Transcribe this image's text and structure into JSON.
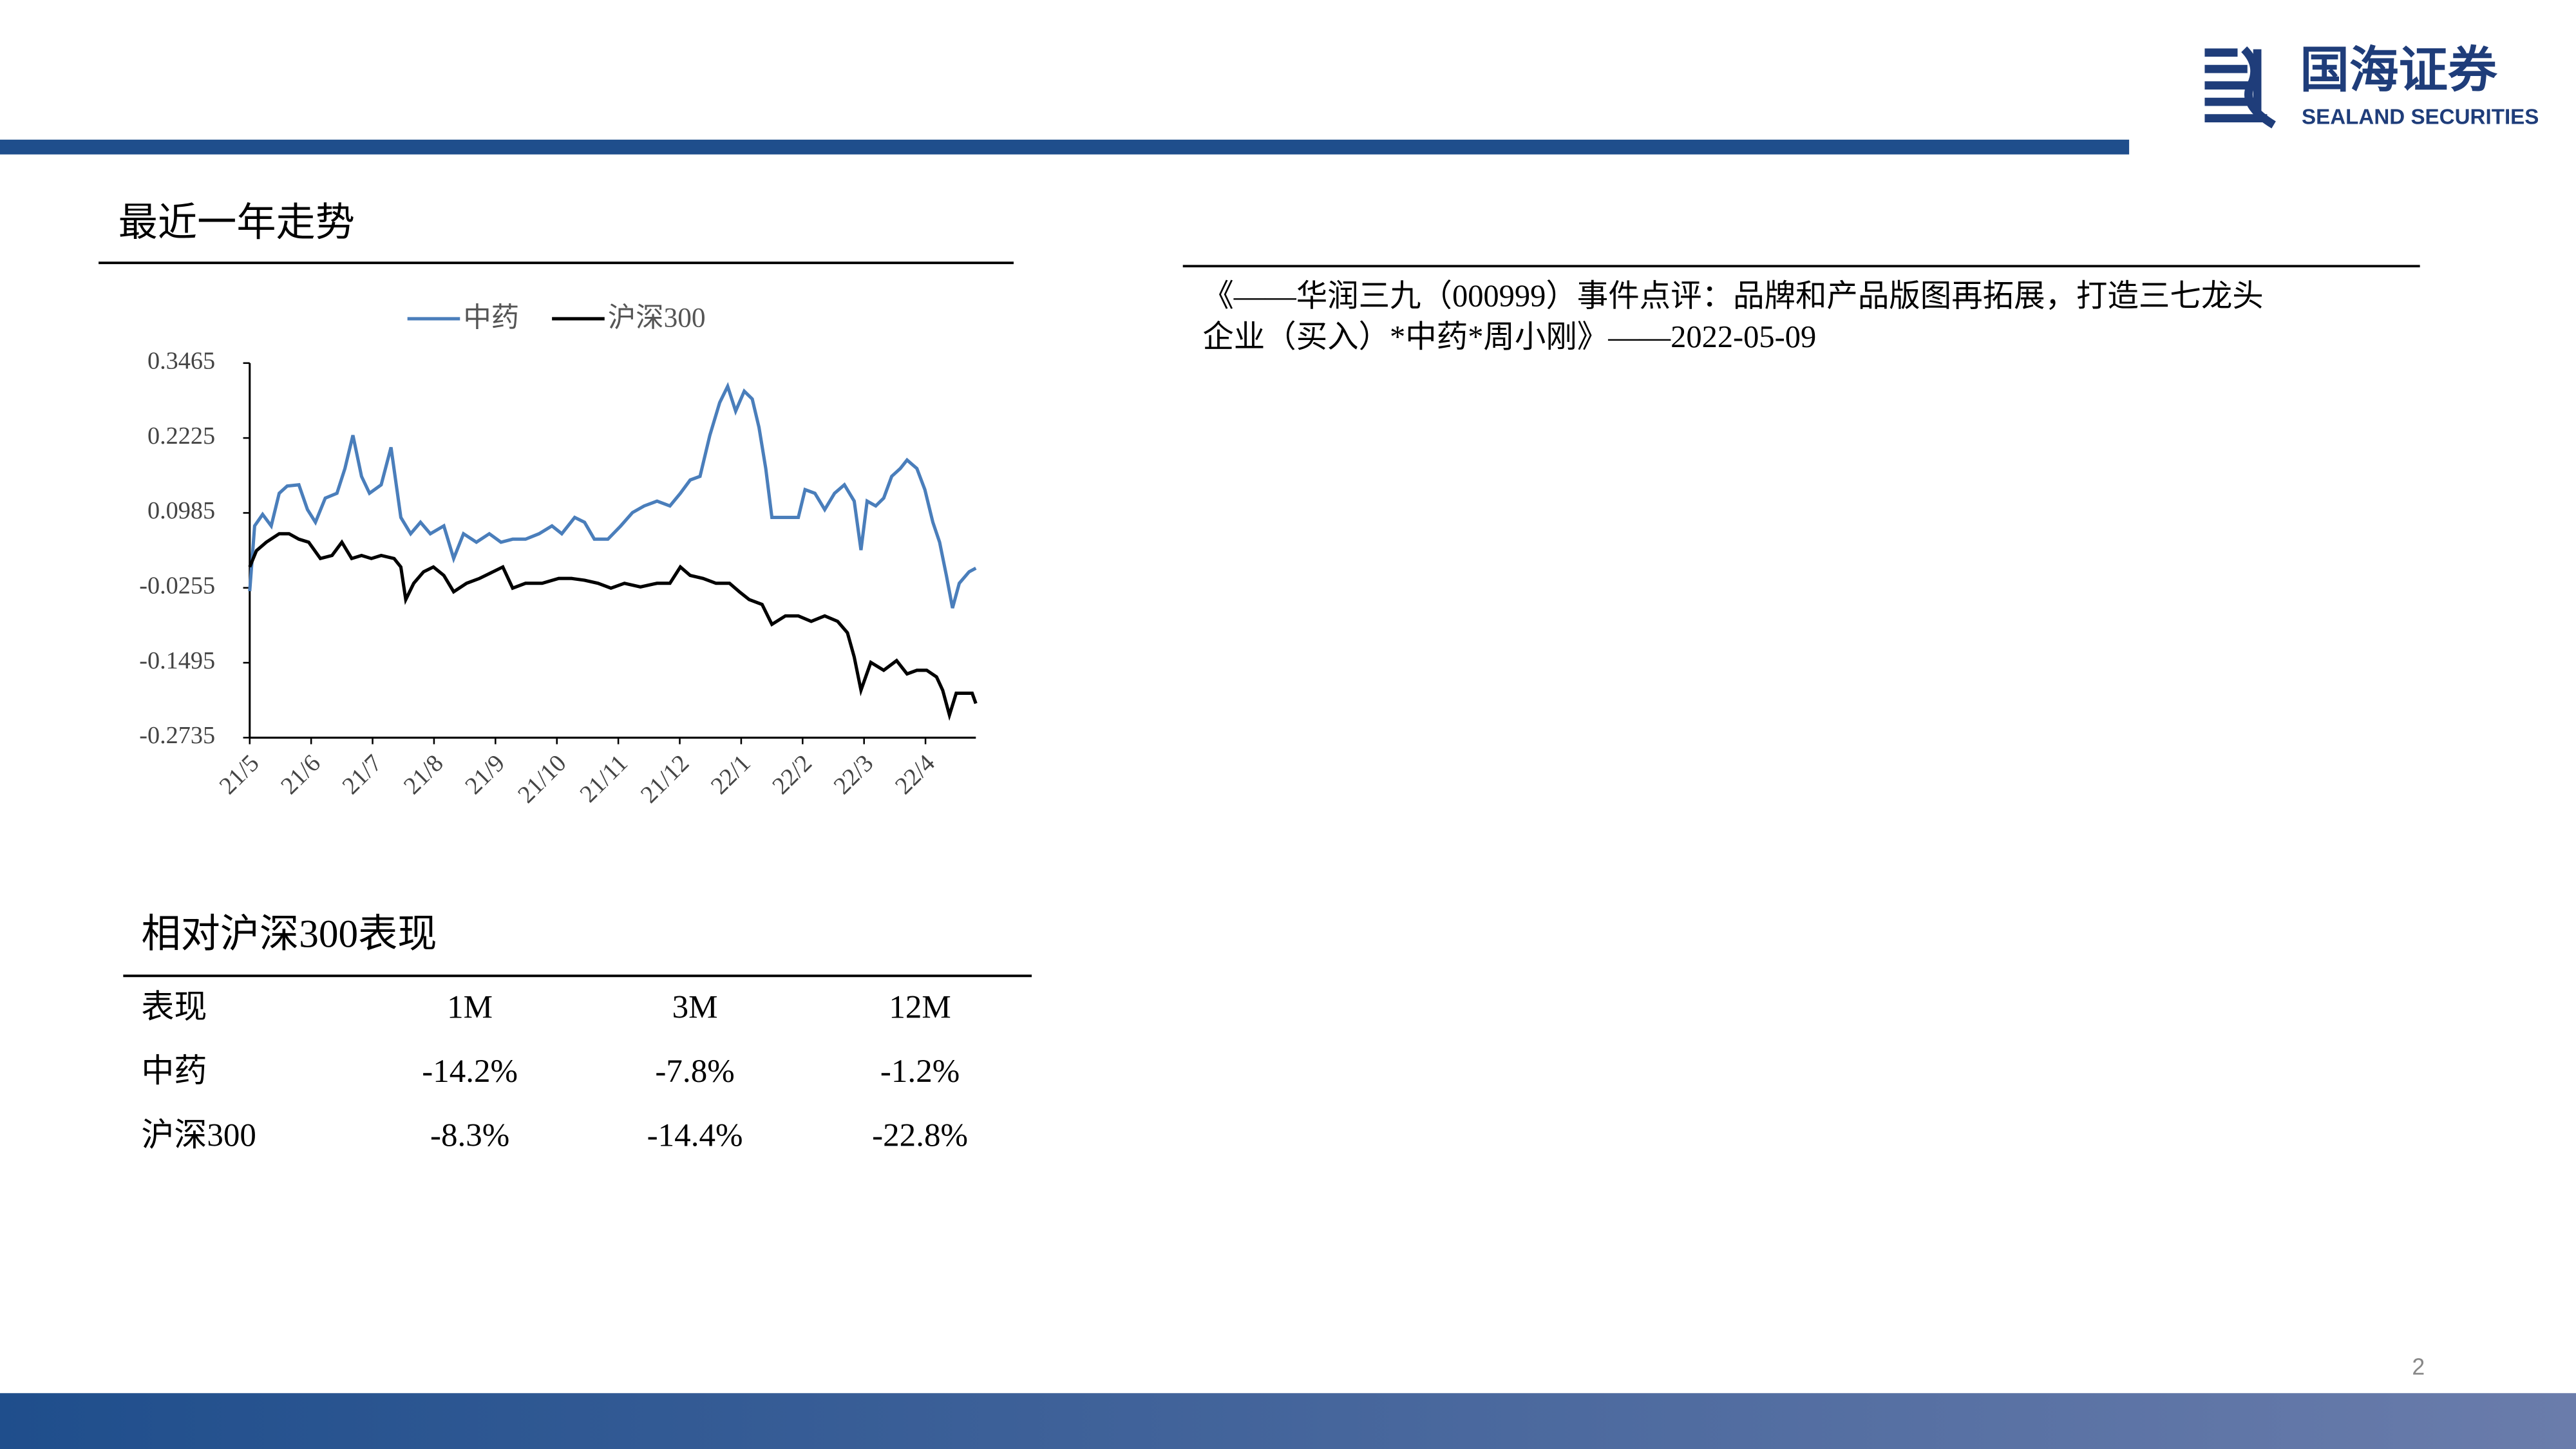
{
  "header": {
    "brand": "国海证券",
    "brand_en": "SEALAND SECURITIES"
  },
  "chart_data": {
    "type": "line",
    "title": "最近一年走势",
    "xlim": [
      0,
      11.82
    ],
    "xticks": [
      {
        "value": 0,
        "label": "21/5"
      },
      {
        "value": 1,
        "label": "21/6"
      },
      {
        "value": 2,
        "label": "21/7"
      },
      {
        "value": 3,
        "label": "21/8"
      },
      {
        "value": 4,
        "label": "21/9"
      },
      {
        "value": 5,
        "label": "21/10"
      },
      {
        "value": 6,
        "label": "21/11"
      },
      {
        "value": 7,
        "label": "21/12"
      },
      {
        "value": 8,
        "label": "22/1"
      },
      {
        "value": 9,
        "label": "22/2"
      },
      {
        "value": 10,
        "label": "22/3"
      },
      {
        "value": 11,
        "label": "22/4"
      }
    ],
    "ylim": [
      -0.2735,
      0.3465
    ],
    "yticks": [
      0.3465,
      0.2225,
      0.0985,
      -0.0255,
      -0.1495,
      -0.2735
    ],
    "legend": "top",
    "series": [
      {
        "name": "中药",
        "color": "#4a7ebb",
        "x": [
          0,
          0.08,
          0.21,
          0.35,
          0.48,
          0.61,
          0.8,
          0.94,
          1.07,
          1.23,
          1.42,
          1.55,
          1.68,
          1.82,
          1.95,
          2.14,
          2.3,
          2.46,
          2.62,
          2.78,
          2.94,
          3.16,
          3.32,
          3.48,
          3.69,
          3.9,
          4.09,
          4.28,
          4.49,
          4.71,
          4.92,
          5.08,
          5.29,
          5.45,
          5.61,
          5.83,
          6.04,
          6.23,
          6.42,
          6.63,
          6.84,
          7.01,
          7.17,
          7.33,
          7.49,
          7.65,
          7.78,
          7.91,
          8.05,
          8.18,
          8.29,
          8.4,
          8.5,
          8.72,
          8.93,
          9.04,
          9.2,
          9.36,
          9.52,
          9.68,
          9.84,
          9.95,
          10.05,
          10.19,
          10.32,
          10.45,
          10.59,
          10.7,
          10.86,
          10.99,
          11.12,
          11.23,
          11.34,
          11.44,
          11.55,
          11.71,
          11.82
        ],
        "values": [
          -0.031,
          0.077,
          0.096,
          0.077,
          0.131,
          0.143,
          0.145,
          0.104,
          0.083,
          0.123,
          0.131,
          0.172,
          0.227,
          0.159,
          0.131,
          0.145,
          0.207,
          0.091,
          0.064,
          0.083,
          0.064,
          0.077,
          0.023,
          0.064,
          0.05,
          0.064,
          0.05,
          0.055,
          0.055,
          0.064,
          0.077,
          0.064,
          0.091,
          0.083,
          0.055,
          0.055,
          0.077,
          0.099,
          0.11,
          0.118,
          0.11,
          0.131,
          0.153,
          0.159,
          0.227,
          0.281,
          0.308,
          0.267,
          0.3,
          0.287,
          0.24,
          0.172,
          0.091,
          0.091,
          0.091,
          0.137,
          0.131,
          0.104,
          0.131,
          0.145,
          0.118,
          0.037,
          0.118,
          0.11,
          0.123,
          0.159,
          0.172,
          0.186,
          0.172,
          0.137,
          0.083,
          0.05,
          -0.005,
          -0.059,
          -0.018,
          0.001,
          0.007
        ]
      },
      {
        "name": "沪深300",
        "color": "#000000",
        "x": [
          0,
          0.11,
          0.27,
          0.48,
          0.64,
          0.8,
          0.96,
          1.15,
          1.34,
          1.5,
          1.66,
          1.82,
          1.98,
          2.14,
          2.35,
          2.46,
          2.54,
          2.67,
          2.83,
          2.99,
          3.16,
          3.32,
          3.53,
          3.74,
          3.96,
          4.12,
          4.28,
          4.49,
          4.76,
          5.03,
          5.24,
          5.45,
          5.67,
          5.88,
          6.1,
          6.36,
          6.63,
          6.84,
          7.01,
          7.17,
          7.38,
          7.59,
          7.81,
          7.97,
          8.13,
          8.34,
          8.5,
          8.72,
          8.93,
          9.14,
          9.36,
          9.57,
          9.73,
          9.84,
          9.95,
          10.11,
          10.32,
          10.53,
          10.7,
          10.86,
          11.02,
          11.18,
          11.28,
          11.39,
          11.5,
          11.66,
          11.76,
          11.82
        ],
        "values": [
          0.009,
          0.036,
          0.05,
          0.064,
          0.064,
          0.055,
          0.05,
          0.023,
          0.028,
          0.05,
          0.023,
          0.028,
          0.023,
          0.028,
          0.023,
          0.009,
          -0.045,
          -0.018,
          0.001,
          0.009,
          -0.005,
          -0.032,
          -0.018,
          -0.01,
          0.001,
          0.009,
          -0.026,
          -0.018,
          -0.018,
          -0.01,
          -0.01,
          -0.013,
          -0.018,
          -0.026,
          -0.018,
          -0.024,
          -0.018,
          -0.018,
          0.009,
          -0.005,
          -0.01,
          -0.018,
          -0.018,
          -0.032,
          -0.045,
          -0.053,
          -0.086,
          -0.072,
          -0.072,
          -0.081,
          -0.072,
          -0.081,
          -0.1,
          -0.14,
          -0.195,
          -0.149,
          -0.162,
          -0.146,
          -0.168,
          -0.162,
          -0.162,
          -0.173,
          -0.195,
          -0.236,
          -0.2,
          -0.2,
          -0.2,
          -0.217
        ]
      }
    ]
  },
  "table": {
    "title": "相对沪深300表现",
    "header": [
      "表现",
      "1M",
      "3M",
      "12M"
    ],
    "rows": [
      [
        "中药",
        "-14.2%",
        "-7.8%",
        "-1.2%"
      ],
      [
        "沪深300",
        "-8.3%",
        "-14.4%",
        "-22.8%"
      ]
    ]
  },
  "report": {
    "lines": [
      "《——华润三九（000999）事件点评：品牌和产品版图再拓展，打造三七龙头",
      "企业（买入）*中药*周小刚》——2022-05-09"
    ]
  },
  "page_number": "2"
}
